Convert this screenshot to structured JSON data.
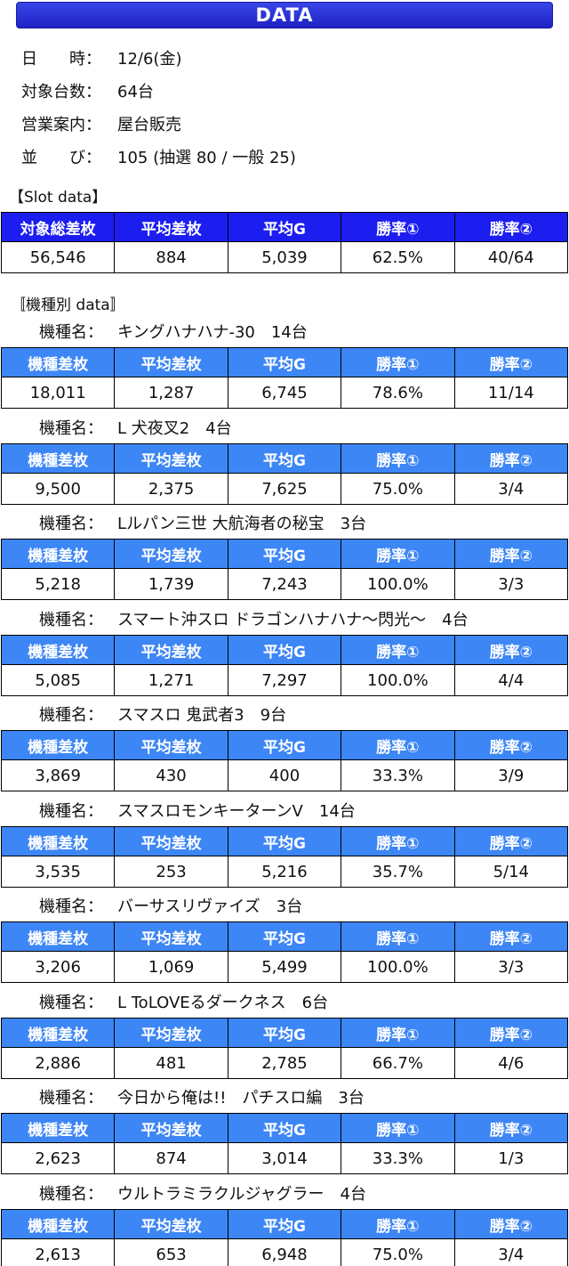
{
  "banner": "DATA",
  "info": [
    {
      "label": "日　　時：",
      "value": "12/6(金)"
    },
    {
      "label": "対象台数：",
      "value": "64台"
    },
    {
      "label": "営業案内：",
      "value": "屋台販売"
    },
    {
      "label": "並　　び：",
      "value": "105 (抽選 80 / 一般 25)"
    }
  ],
  "slot_section_label": "【Slot data】",
  "slot_headers": [
    "対象総差枚",
    "平均差枚",
    "平均G",
    "勝率①",
    "勝率②"
  ],
  "slot_values": [
    "56,546",
    "884",
    "5,039",
    "62.5%",
    "40/64"
  ],
  "model_section_label": "〚機種別 data〛",
  "model_label": "機種名：",
  "model_headers": [
    "機種差枚",
    "平均差枚",
    "平均G",
    "勝率①",
    "勝率②"
  ],
  "models": [
    {
      "name": "キングハナハナ-30　14台",
      "values": [
        "18,011",
        "1,287",
        "6,745",
        "78.6%",
        "11/14"
      ]
    },
    {
      "name": "L 犬夜叉2　4台",
      "values": [
        "9,500",
        "2,375",
        "7,625",
        "75.0%",
        "3/4"
      ]
    },
    {
      "name": "Lルパン三世 大航海者の秘宝　3台",
      "values": [
        "5,218",
        "1,739",
        "7,243",
        "100.0%",
        "3/3"
      ]
    },
    {
      "name": "スマート沖スロ ドラゴンハナハナ～閃光～　4台",
      "values": [
        "5,085",
        "1,271",
        "7,297",
        "100.0%",
        "4/4"
      ]
    },
    {
      "name": "スマスロ 鬼武者3　9台",
      "values": [
        "3,869",
        "430",
        "400",
        "33.3%",
        "3/9"
      ]
    },
    {
      "name": "スマスロモンキーターンV　14台",
      "values": [
        "3,535",
        "253",
        "5,216",
        "35.7%",
        "5/14"
      ]
    },
    {
      "name": "バーサスリヴァイズ　3台",
      "values": [
        "3,206",
        "1,069",
        "5,499",
        "100.0%",
        "3/3"
      ]
    },
    {
      "name": "L ToLOVEるダークネス　6台",
      "values": [
        "2,886",
        "481",
        "2,785",
        "66.7%",
        "4/6"
      ]
    },
    {
      "name": "今日から俺は!!　パチスロ編　3台",
      "values": [
        "2,623",
        "874",
        "3,014",
        "33.3%",
        "1/3"
      ]
    },
    {
      "name": "ウルトラミラクルジャグラー　4台",
      "values": [
        "2,613",
        "653",
        "6,948",
        "75.0%",
        "3/4"
      ]
    }
  ]
}
